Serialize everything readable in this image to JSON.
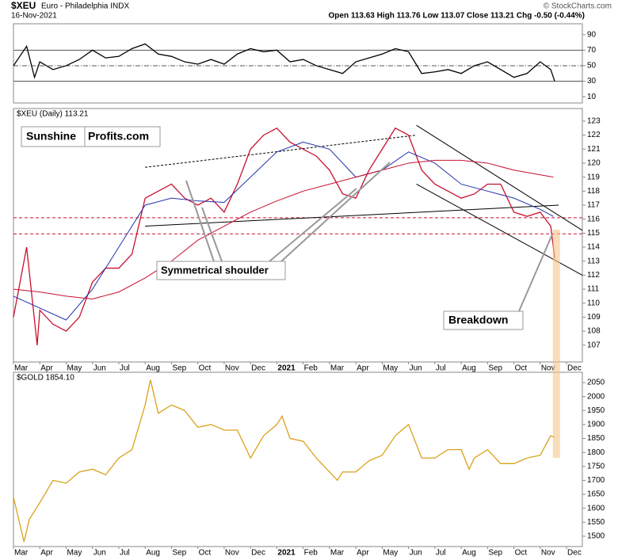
{
  "header": {
    "symbol": "$XEU",
    "name": "Euro - Philadelphia INDX",
    "date": "16-Nov-2021",
    "ohlc": "Open 113.63  High 113.76  Low 113.07  Close 113.21  Chg -0.50 (-0.44%)",
    "credit": "© StockCharts.com"
  },
  "chart_data": [
    {
      "type": "line",
      "xlim": [
        0,
        21.6
      ],
      "ylim": [
        2,
        104
      ],
      "yticks": [
        10,
        30,
        50,
        70,
        90
      ],
      "hlines": [
        70,
        50,
        30
      ],
      "series": [
        {
          "color": "#000000",
          "x": [
            0,
            0.5,
            0.8,
            1,
            1.5,
            2,
            2.5,
            3,
            3.5,
            4,
            4.5,
            5,
            5.5,
            6,
            6.5,
            7,
            7.5,
            8,
            8.5,
            9,
            9.5,
            10,
            10.5,
            11,
            11.5,
            12,
            12.5,
            13,
            13.5,
            14,
            14.5,
            15,
            15.5,
            16,
            16.5,
            17,
            17.5,
            18,
            18.5,
            19,
            19.5,
            20,
            20.4,
            20.55
          ],
          "values": [
            50,
            75,
            35,
            55,
            45,
            50,
            58,
            70,
            60,
            62,
            72,
            78,
            65,
            62,
            55,
            52,
            58,
            52,
            65,
            72,
            68,
            70,
            55,
            58,
            50,
            45,
            40,
            55,
            60,
            65,
            72,
            68,
            40,
            42,
            45,
            40,
            50,
            55,
            45,
            35,
            40,
            55,
            45,
            30
          ]
        }
      ]
    },
    {
      "type": "line",
      "label": "$XEU (Daily) 113.21",
      "xlim": [
        0,
        21.6
      ],
      "ylim": [
        105.8,
        123.9
      ],
      "yticks": [
        107,
        108,
        109,
        110,
        111,
        112,
        113,
        114,
        115,
        116,
        117,
        118,
        119,
        120,
        121,
        122,
        123
      ],
      "xticks": [
        {
          "value": 0,
          "label": "Mar"
        },
        {
          "value": 1,
          "label": "Apr"
        },
        {
          "value": 2,
          "label": "May"
        },
        {
          "value": 3,
          "label": "Jun"
        },
        {
          "value": 4,
          "label": "Jul"
        },
        {
          "value": 5,
          "label": "Aug"
        },
        {
          "value": 6,
          "label": "Sep"
        },
        {
          "value": 7,
          "label": "Oct"
        },
        {
          "value": 8,
          "label": "Nov"
        },
        {
          "value": 9,
          "label": "Dec"
        },
        {
          "value": 10,
          "label": "2021"
        },
        {
          "value": 11,
          "label": "Feb"
        },
        {
          "value": 12,
          "label": "Mar"
        },
        {
          "value": 13,
          "label": "Apr"
        },
        {
          "value": 14,
          "label": "May"
        },
        {
          "value": 15,
          "label": "Jun"
        },
        {
          "value": 16,
          "label": "Jul"
        },
        {
          "value": 17,
          "label": "Aug"
        },
        {
          "value": 18,
          "label": "Sep"
        },
        {
          "value": 19,
          "label": "Oct"
        },
        {
          "value": 20,
          "label": "Nov"
        },
        {
          "value": 21,
          "label": "Dec"
        }
      ],
      "hlines": [
        116.1,
        114.95
      ],
      "trendlines": [
        {
          "x": [
            5,
            15.3
          ],
          "y": [
            119.7,
            122.0
          ],
          "dashed": true
        },
        {
          "x": [
            5,
            20.7
          ],
          "y": [
            115.5,
            117.0
          ]
        },
        {
          "x": [
            15.3,
            21.6
          ],
          "y": [
            122.7,
            115.2
          ]
        },
        {
          "x": [
            15.3,
            21.6
          ],
          "y": [
            118.5,
            112.0
          ]
        }
      ],
      "series": [
        {
          "color": "#c8102e",
          "x": [
            0,
            0.5,
            0.9,
            1,
            1.5,
            2,
            2.5,
            3,
            3.5,
            4,
            4.5,
            5,
            5.5,
            6,
            6.5,
            7,
            7.5,
            8,
            8.5,
            9,
            9.5,
            10,
            10.5,
            11,
            11.5,
            12,
            12.5,
            13,
            13.5,
            14,
            14.5,
            15,
            15.5,
            16,
            16.5,
            17,
            17.5,
            18,
            18.5,
            19,
            19.5,
            20,
            20.4,
            20.55
          ],
          "values": [
            109,
            114,
            107,
            109.5,
            108.5,
            108,
            109,
            111.5,
            112.5,
            112.5,
            113.5,
            117.5,
            118,
            118.5,
            117.5,
            117,
            117.5,
            116.5,
            118.5,
            121,
            122,
            122.5,
            121.5,
            121,
            120.5,
            119.5,
            117.8,
            117.5,
            119.5,
            121,
            122.5,
            122,
            119.5,
            118.5,
            118,
            117.5,
            117.8,
            118.5,
            118.5,
            116.5,
            116.2,
            116.5,
            115.5,
            113.21
          ]
        },
        {
          "color": "#2233aa",
          "x": [
            0,
            2,
            3,
            4,
            5,
            6,
            7,
            8,
            9,
            10,
            11,
            12,
            13,
            14,
            15,
            16,
            17,
            18,
            19,
            20,
            20.5
          ],
          "values": [
            110.5,
            108.8,
            111,
            114,
            117,
            117.5,
            117.3,
            117.2,
            119,
            120.8,
            121.5,
            121,
            119,
            119.5,
            120.8,
            120,
            118.5,
            118,
            117.5,
            116.7,
            116.2
          ]
        },
        {
          "color": "#c8102e",
          "x": [
            0,
            1,
            2,
            3,
            4,
            5,
            6,
            7,
            8,
            9,
            10,
            11,
            12,
            13,
            14,
            15,
            16,
            17,
            18,
            19,
            20.5
          ],
          "values": [
            111,
            110.8,
            110.5,
            110.3,
            110.8,
            111.8,
            113,
            114.5,
            115.5,
            116.5,
            117.3,
            118,
            118.5,
            119,
            119.5,
            120,
            120.2,
            120.2,
            120,
            119.5,
            119
          ]
        }
      ],
      "logo": [
        "Sunshine",
        "Profits.com"
      ],
      "annotations": [
        "Symmetrical shoulder",
        "Breakdown"
      ]
    },
    {
      "type": "line",
      "label": "$GOLD 1854.10",
      "xlim": [
        0,
        21.6
      ],
      "ylim": [
        1463,
        2087
      ],
      "yticks": [
        1500,
        1550,
        1600,
        1650,
        1700,
        1750,
        1800,
        1850,
        1900,
        1950,
        2000,
        2050
      ],
      "xticks": [
        {
          "value": 0,
          "label": "Mar"
        },
        {
          "value": 1,
          "label": "Apr"
        },
        {
          "value": 2,
          "label": "May"
        },
        {
          "value": 3,
          "label": "Jun"
        },
        {
          "value": 4,
          "label": "Jul"
        },
        {
          "value": 5,
          "label": "Aug"
        },
        {
          "value": 6,
          "label": "Sep"
        },
        {
          "value": 7,
          "label": "Oct"
        },
        {
          "value": 8,
          "label": "Nov"
        },
        {
          "value": 9,
          "label": "Dec"
        },
        {
          "value": 10,
          "label": "2021"
        },
        {
          "value": 11,
          "label": "Feb"
        },
        {
          "value": 12,
          "label": "Mar"
        },
        {
          "value": 13,
          "label": "Apr"
        },
        {
          "value": 14,
          "label": "May"
        },
        {
          "value": 15,
          "label": "Jun"
        },
        {
          "value": 16,
          "label": "Jul"
        },
        {
          "value": 17,
          "label": "Aug"
        },
        {
          "value": 18,
          "label": "Sep"
        },
        {
          "value": 19,
          "label": "Oct"
        },
        {
          "value": 20,
          "label": "Nov"
        },
        {
          "value": 21,
          "label": "Dec"
        }
      ],
      "series": [
        {
          "color": "#d9a21b",
          "x": [
            0,
            0.4,
            0.6,
            1,
            1.5,
            2,
            2.5,
            3,
            3.5,
            4,
            4.5,
            5,
            5.2,
            5.5,
            6,
            6.5,
            7,
            7.5,
            8,
            8.5,
            9,
            9.5,
            10,
            10.2,
            10.5,
            11,
            11.5,
            12,
            12.3,
            12.5,
            13,
            13.5,
            14,
            14.5,
            15,
            15.5,
            16,
            16.5,
            17,
            17.3,
            17.5,
            18,
            18.5,
            19,
            19.5,
            20,
            20.4,
            20.55
          ],
          "values": [
            1640,
            1480,
            1560,
            1620,
            1700,
            1690,
            1730,
            1740,
            1720,
            1780,
            1810,
            1970,
            2060,
            1940,
            1970,
            1950,
            1890,
            1900,
            1880,
            1880,
            1780,
            1860,
            1900,
            1930,
            1850,
            1840,
            1780,
            1730,
            1700,
            1730,
            1730,
            1770,
            1790,
            1860,
            1900,
            1780,
            1780,
            1810,
            1810,
            1740,
            1780,
            1810,
            1760,
            1760,
            1780,
            1790,
            1860,
            1854
          ]
        }
      ]
    }
  ]
}
